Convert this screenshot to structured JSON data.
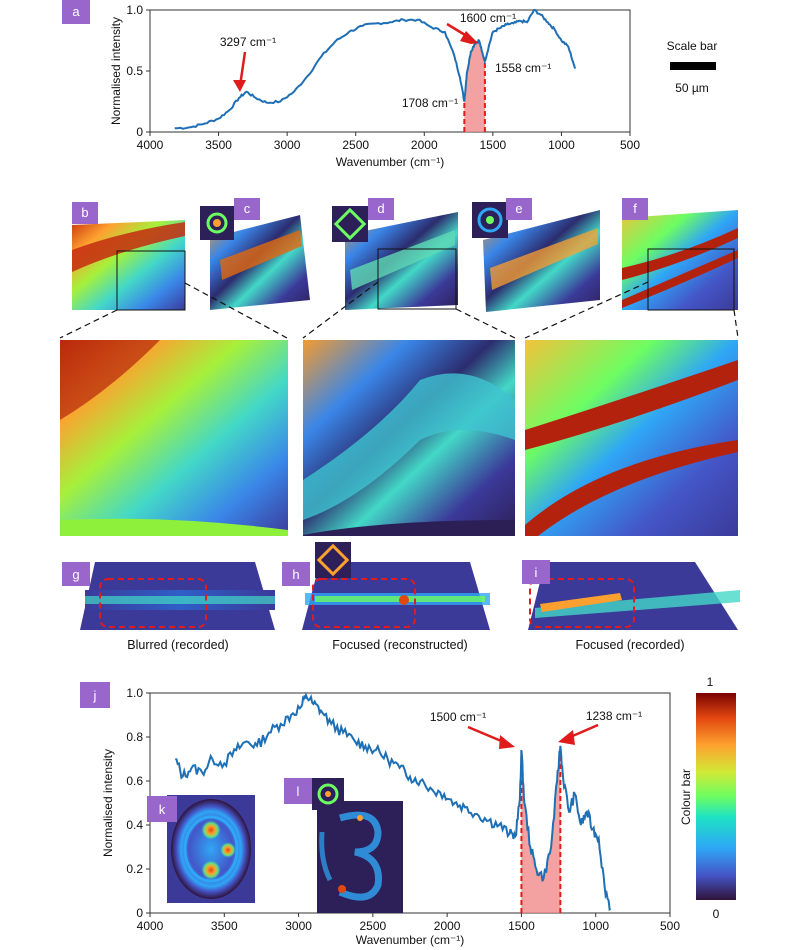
{
  "labels": {
    "a": "a",
    "b": "b",
    "c": "c",
    "d": "d",
    "e": "e",
    "f": "f",
    "g": "g",
    "h": "h",
    "i": "i",
    "j": "j",
    "k": "k",
    "l": "l"
  },
  "scale_bar": {
    "title": "Scale bar",
    "value": "50 µm"
  },
  "captions": {
    "g": "Blurred (recorded)",
    "h": "Focused (reconstructed)",
    "i": "Focused (recorded)"
  },
  "colour_bar": {
    "title": "Colour bar",
    "max": "1",
    "min": "0"
  },
  "colors": {
    "line": "#1f6fb4",
    "arrow": "#e01b1b",
    "fill": "#f08a8a",
    "label_bg": "#9966cc",
    "dash": "#e01b1b"
  },
  "chart_data": [
    {
      "id": "a",
      "type": "line",
      "title": "",
      "xlabel": "Wavenumber (cm⁻¹)",
      "ylabel": "Normalised intensity",
      "xlim": [
        4000,
        500
      ],
      "ylim": [
        0,
        1.0
      ],
      "xticks": [
        "4000",
        "3500",
        "3000",
        "2500",
        "2000",
        "1500",
        "1000",
        "500"
      ],
      "yticks": [
        "0",
        "0.5",
        "1.0"
      ],
      "series": [
        {
          "name": "spectrum",
          "x": [
            3820,
            3700,
            3600,
            3500,
            3420,
            3350,
            3297,
            3230,
            3150,
            3050,
            2950,
            2850,
            2750,
            2650,
            2550,
            2450,
            2350,
            2250,
            2150,
            2050,
            1950,
            1850,
            1780,
            1740,
            1708,
            1690,
            1660,
            1630,
            1600,
            1580,
            1558,
            1530,
            1500,
            1450,
            1400,
            1350,
            1300,
            1250,
            1200,
            1150,
            1100,
            1050,
            1000,
            950,
            900
          ],
          "y": [
            0.03,
            0.04,
            0.07,
            0.11,
            0.18,
            0.28,
            0.33,
            0.28,
            0.24,
            0.25,
            0.33,
            0.46,
            0.62,
            0.74,
            0.82,
            0.87,
            0.89,
            0.9,
            0.92,
            0.92,
            0.86,
            0.82,
            0.62,
            0.45,
            0.25,
            0.48,
            0.66,
            0.73,
            0.75,
            0.66,
            0.58,
            0.7,
            0.82,
            0.85,
            0.88,
            0.89,
            0.91,
            0.9,
            1.0,
            0.96,
            0.9,
            0.84,
            0.75,
            0.7,
            0.52
          ]
        }
      ],
      "shaded_range": [
        1708,
        1558
      ],
      "annotations": [
        {
          "text": "3297 cm⁻¹",
          "x": 3297,
          "y": 0.33
        },
        {
          "text": "1600 cm⁻¹",
          "x": 1600,
          "y": 0.75
        },
        {
          "text": "1558 cm⁻¹",
          "x": 1558,
          "y": 0.58
        },
        {
          "text": "1708 cm⁻¹",
          "x": 1708,
          "y": 0.25
        }
      ]
    },
    {
      "id": "j",
      "type": "line",
      "title": "",
      "xlabel": "Wavenumber (cm⁻¹)",
      "ylabel": "Normalised intensity",
      "xlim": [
        4000,
        500
      ],
      "ylim": [
        0,
        1.0
      ],
      "xticks": [
        "4000",
        "3500",
        "3000",
        "2500",
        "2000",
        "1500",
        "1000",
        "500"
      ],
      "yticks": [
        "0",
        "0.2",
        "0.4",
        "0.6",
        "0.8",
        "1.0"
      ],
      "series": [
        {
          "name": "spectrum",
          "x": [
            3830,
            3780,
            3720,
            3650,
            3580,
            3500,
            3420,
            3350,
            3280,
            3200,
            3120,
            3050,
            2980,
            2950,
            2900,
            2850,
            2780,
            2700,
            2620,
            2550,
            2480,
            2400,
            2320,
            2250,
            2180,
            2100,
            2020,
            1950,
            1880,
            1800,
            1720,
            1650,
            1580,
            1540,
            1510,
            1500,
            1480,
            1440,
            1400,
            1350,
            1300,
            1260,
            1238,
            1220,
            1180,
            1140,
            1100,
            1060,
            1020,
            980,
            940,
            900
          ],
          "y": [
            0.7,
            0.62,
            0.66,
            0.64,
            0.7,
            0.68,
            0.74,
            0.78,
            0.76,
            0.82,
            0.86,
            0.9,
            0.94,
            0.99,
            0.95,
            0.92,
            0.86,
            0.82,
            0.78,
            0.76,
            0.74,
            0.7,
            0.66,
            0.62,
            0.6,
            0.56,
            0.54,
            0.5,
            0.48,
            0.45,
            0.42,
            0.4,
            0.36,
            0.35,
            0.52,
            0.74,
            0.5,
            0.3,
            0.2,
            0.16,
            0.3,
            0.6,
            0.76,
            0.62,
            0.46,
            0.54,
            0.4,
            0.46,
            0.38,
            0.34,
            0.12,
            0.02
          ]
        }
      ],
      "shaded_range": [
        1500,
        1238
      ],
      "annotations": [
        {
          "text": "1500 cm⁻¹",
          "x": 1500,
          "y": 0.74
        },
        {
          "text": "1238 cm⁻¹",
          "x": 1238,
          "y": 0.76
        }
      ]
    }
  ]
}
